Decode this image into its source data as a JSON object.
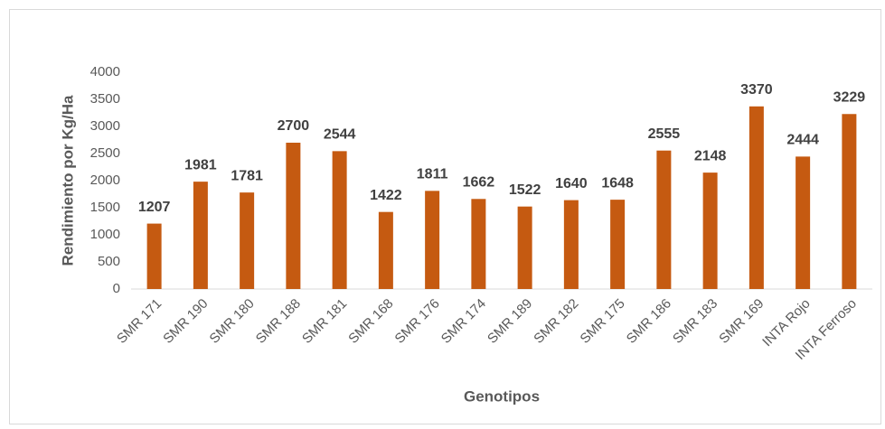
{
  "chart_data": {
    "type": "bar",
    "x_label": "Genotipos",
    "y_label": "Rendimiento por Kg/Ha",
    "categories": [
      "SMR 171",
      "SMR 190",
      "SMR 180",
      "SMR 188",
      "SMR 181",
      "SMR 168",
      "SMR 176",
      "SMR 174",
      "SMR 189",
      "SMR 182",
      "SMR 175",
      "SMR 186",
      "SMR 183",
      "SMR 169",
      "INTA Rojo",
      "INTA Ferroso"
    ],
    "values": [
      1207,
      1981,
      1781,
      2700,
      2544,
      1422,
      1811,
      1662,
      1522,
      1640,
      1648,
      2555,
      2148,
      3370,
      2444,
      3229
    ],
    "color": "#c55a11",
    "ylim": [
      0,
      4000
    ],
    "yticks": [
      0,
      500,
      1000,
      1500,
      2000,
      2500,
      3000,
      3500,
      4000
    ],
    "grid": false
  }
}
